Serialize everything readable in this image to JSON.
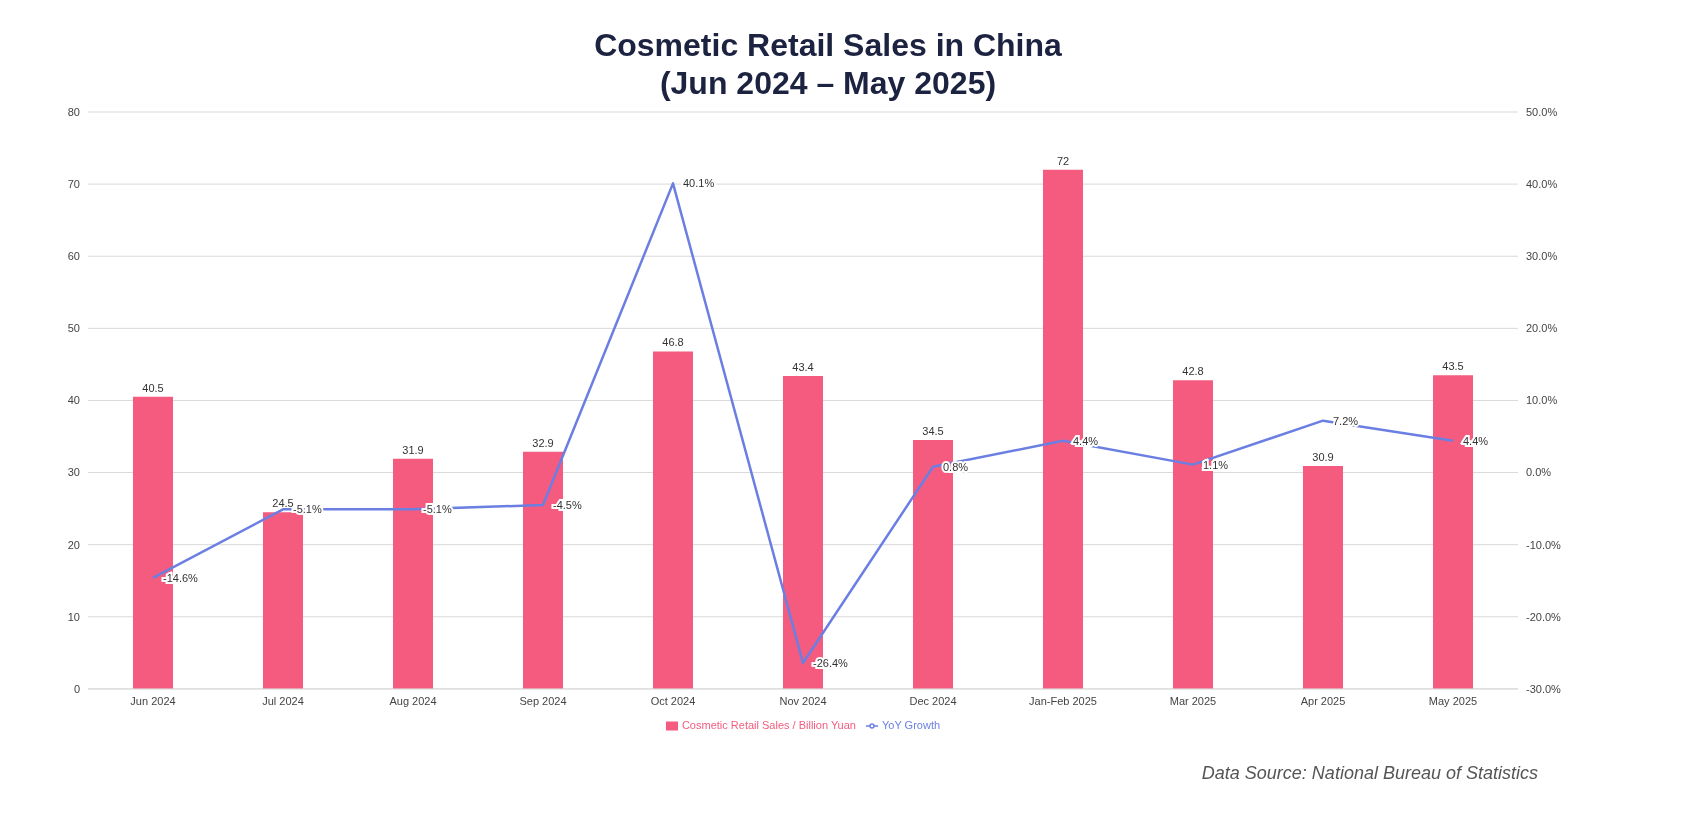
{
  "chart_data": {
    "type": "bar",
    "title": "Cosmetic Retail Sales in China\n(Jun 2024 – May 2025)",
    "categories": [
      "Jun 2024",
      "Jul 2024",
      "Aug 2024",
      "Sep 2024",
      "Oct 2024",
      "Nov 2024",
      "Dec 2024",
      "Jan-Feb 2025",
      "Mar 2025",
      "Apr 2025",
      "May 2025"
    ],
    "series": [
      {
        "name": "Cosmetic Retail Sales / Billion Yuan",
        "color": "#f45b7e",
        "values": [
          40.5,
          24.5,
          31.9,
          32.9,
          46.8,
          43.4,
          34.5,
          72,
          42.8,
          30.9,
          43.5
        ],
        "value_labels": [
          "40.5",
          "24.5",
          "31.9",
          "32.9",
          "46.8",
          "43.4",
          "34.5",
          "72",
          "42.8",
          "30.9",
          "43.5"
        ]
      },
      {
        "name": "YoY Growth",
        "type": "line",
        "axis": "y2",
        "color": "#6b7fe3",
        "values": [
          -14.6,
          -5.1,
          -5.1,
          -4.5,
          40.1,
          -26.4,
          0.8,
          4.4,
          1.1,
          7.2,
          4.4
        ],
        "value_labels": [
          "-14.6%",
          "-5.1%",
          "-5.1%",
          "-4.5%",
          "40.1%",
          "-26.4%",
          "0.8%",
          "4.4%",
          "1.1%",
          "7.2%",
          "4.4%"
        ]
      }
    ],
    "ylim": [
      0,
      80
    ],
    "yticks": [
      0,
      10,
      20,
      30,
      40,
      50,
      60,
      70,
      80
    ],
    "y2lim": [
      -30,
      50
    ],
    "y2ticks": [
      {
        "value": -30,
        "label": "-30.0%"
      },
      {
        "value": -20,
        "label": "-20.0%"
      },
      {
        "value": -10,
        "label": "-10.0%"
      },
      {
        "value": 0,
        "label": "0.0%"
      },
      {
        "value": 10,
        "label": "10.0%"
      },
      {
        "value": 20,
        "label": "20.0%"
      },
      {
        "value": 30,
        "label": "30.0%"
      },
      {
        "value": 40,
        "label": "40.0%"
      },
      {
        "value": 50,
        "label": "50.0%"
      }
    ],
    "grid": "y",
    "legend": "bottom",
    "marker": "none",
    "line_style": "solid",
    "annotations": [
      "Data Source: National Bureau of Statistics"
    ]
  }
}
